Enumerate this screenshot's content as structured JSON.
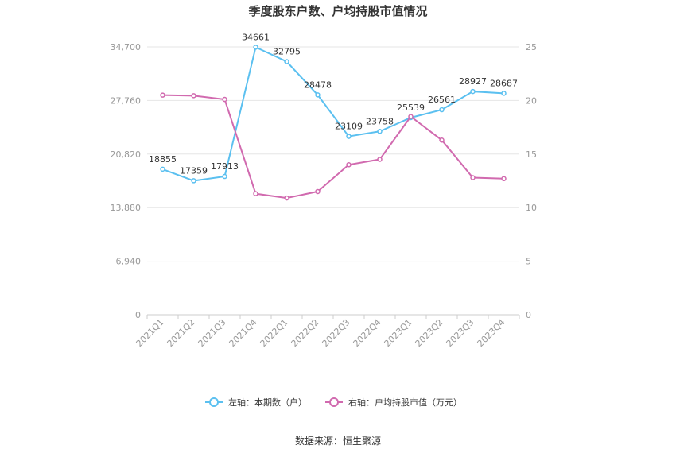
{
  "chart_data": {
    "type": "line",
    "title": "季度股东户数、户均持股市值情况",
    "categories": [
      "2021Q1",
      "2021Q2",
      "2021Q3",
      "2021Q4",
      "2022Q1",
      "2022Q2",
      "2022Q3",
      "2022Q4",
      "2023Q1",
      "2023Q2",
      "2023Q3",
      "2023Q4"
    ],
    "left_axis": {
      "min": 0,
      "max": 34700,
      "ticks": [
        "0",
        "6,940",
        "13,880",
        "20,820",
        "27,760",
        "34,700"
      ]
    },
    "right_axis": {
      "min": 0,
      "max": 25,
      "ticks": [
        "0",
        "5",
        "10",
        "15",
        "20",
        "25"
      ]
    },
    "grid": true,
    "legend_position": "bottom",
    "series": [
      {
        "name": "左轴：本期数（户）",
        "axis": "left",
        "color": "#5bc0f0",
        "values": [
          18855,
          17359,
          17913,
          34661,
          32795,
          28478,
          23109,
          23758,
          25539,
          26561,
          28927,
          28687
        ],
        "labels": [
          "18855",
          "17359",
          "17913",
          "34661",
          "32795",
          "28478",
          "23109",
          "23758",
          "25539",
          "26561",
          "28927",
          "28687"
        ]
      },
      {
        "name": "右轴：户均持股市值（万元）",
        "axis": "right",
        "color": "#d16aaf",
        "values": [
          20.5,
          20.45,
          20.1,
          11.3,
          10.9,
          11.5,
          14.0,
          14.5,
          18.5,
          16.3,
          12.8,
          12.7
        ]
      }
    ],
    "source": "数据来源：恒生聚源"
  }
}
